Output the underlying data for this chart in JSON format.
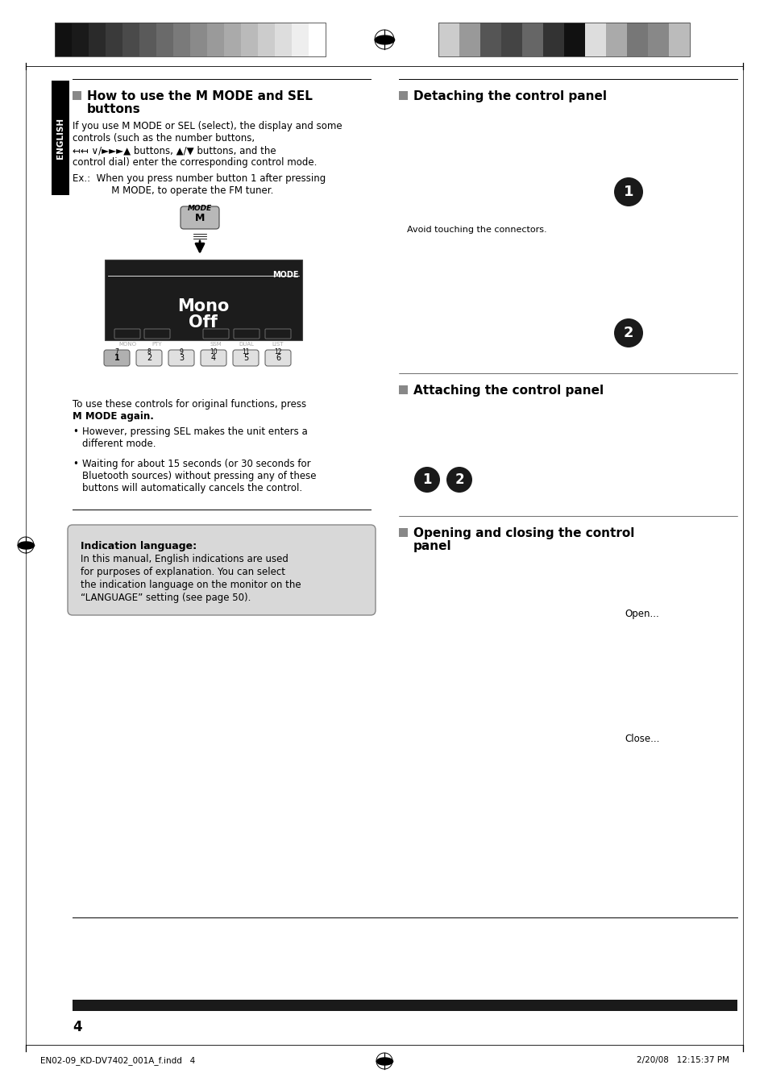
{
  "page_bg": "#ffffff",
  "header_bar_colors_left": [
    "#111111",
    "#1a1a1a",
    "#2a2a2a",
    "#3a3a3a",
    "#4a4a4a",
    "#5a5a5a",
    "#6a6a6a",
    "#7a7a7a",
    "#8a8a8a",
    "#9a9a9a",
    "#aaaaaa",
    "#bababa",
    "#cccccc",
    "#dddddd",
    "#eeeeee",
    "#ffffff"
  ],
  "header_bar_colors_right": [
    "#cccccc",
    "#999999",
    "#555555",
    "#444444",
    "#666666",
    "#333333",
    "#111111",
    "#dddddd",
    "#aaaaaa",
    "#777777",
    "#888888",
    "#bbbbbb"
  ],
  "page_number": "4",
  "footer_left": "EN02-09_KD-DV7402_001A_f.indd   4",
  "footer_right": "2/20/08   12:15:37 PM",
  "english_tab_text": "ENGLISH",
  "english_tab_bg": "#000000",
  "english_tab_text_color": "#ffffff",
  "section1_title_line1": "How to use the M MODE and SEL",
  "section1_title_line2": "buttons",
  "body1_lines": [
    "If you use M MODE or SEL (select), the display and some",
    "controls (such as the number buttons,",
    "↤↤ ∨/►►►▲ buttons, ▲/▼ buttons, and the",
    "control dial) enter the corresponding control mode."
  ],
  "example_line1": "Ex.:  When you press number button 1 after pressing",
  "example_line2": "       M MODE, to operate the FM tuner.",
  "body2_line1": "To use these controls for original functions, press",
  "body2_line2": "M MODE again.",
  "bullet1_lines": [
    "However, pressing SEL makes the unit enters a",
    "different mode."
  ],
  "bullet2_lines": [
    "Waiting for about 15 seconds (or 30 seconds for",
    "Bluetooth sources) without pressing any of these",
    "buttons will automatically cancels the control."
  ],
  "indication_title": "Indication language:",
  "indication_lines": [
    "In this manual, English indications are used",
    "for purposes of explanation. You can select",
    "the indication language on the monitor on the",
    "“LANGUAGE” setting (see page 50)."
  ],
  "indication_box_bg": "#d8d8d8",
  "indication_box_border": "#888888",
  "section2_title": "Detaching the control panel",
  "avoid_text": "Avoid touching the connectors.",
  "section3_title": "Attaching the control panel",
  "section4_title_line1": "Opening and closing the control",
  "section4_title_line2": "panel",
  "open_label": "Open...",
  "close_label": "Close...",
  "bullet_gray": "#888888",
  "section_bullet_color": "#888888"
}
